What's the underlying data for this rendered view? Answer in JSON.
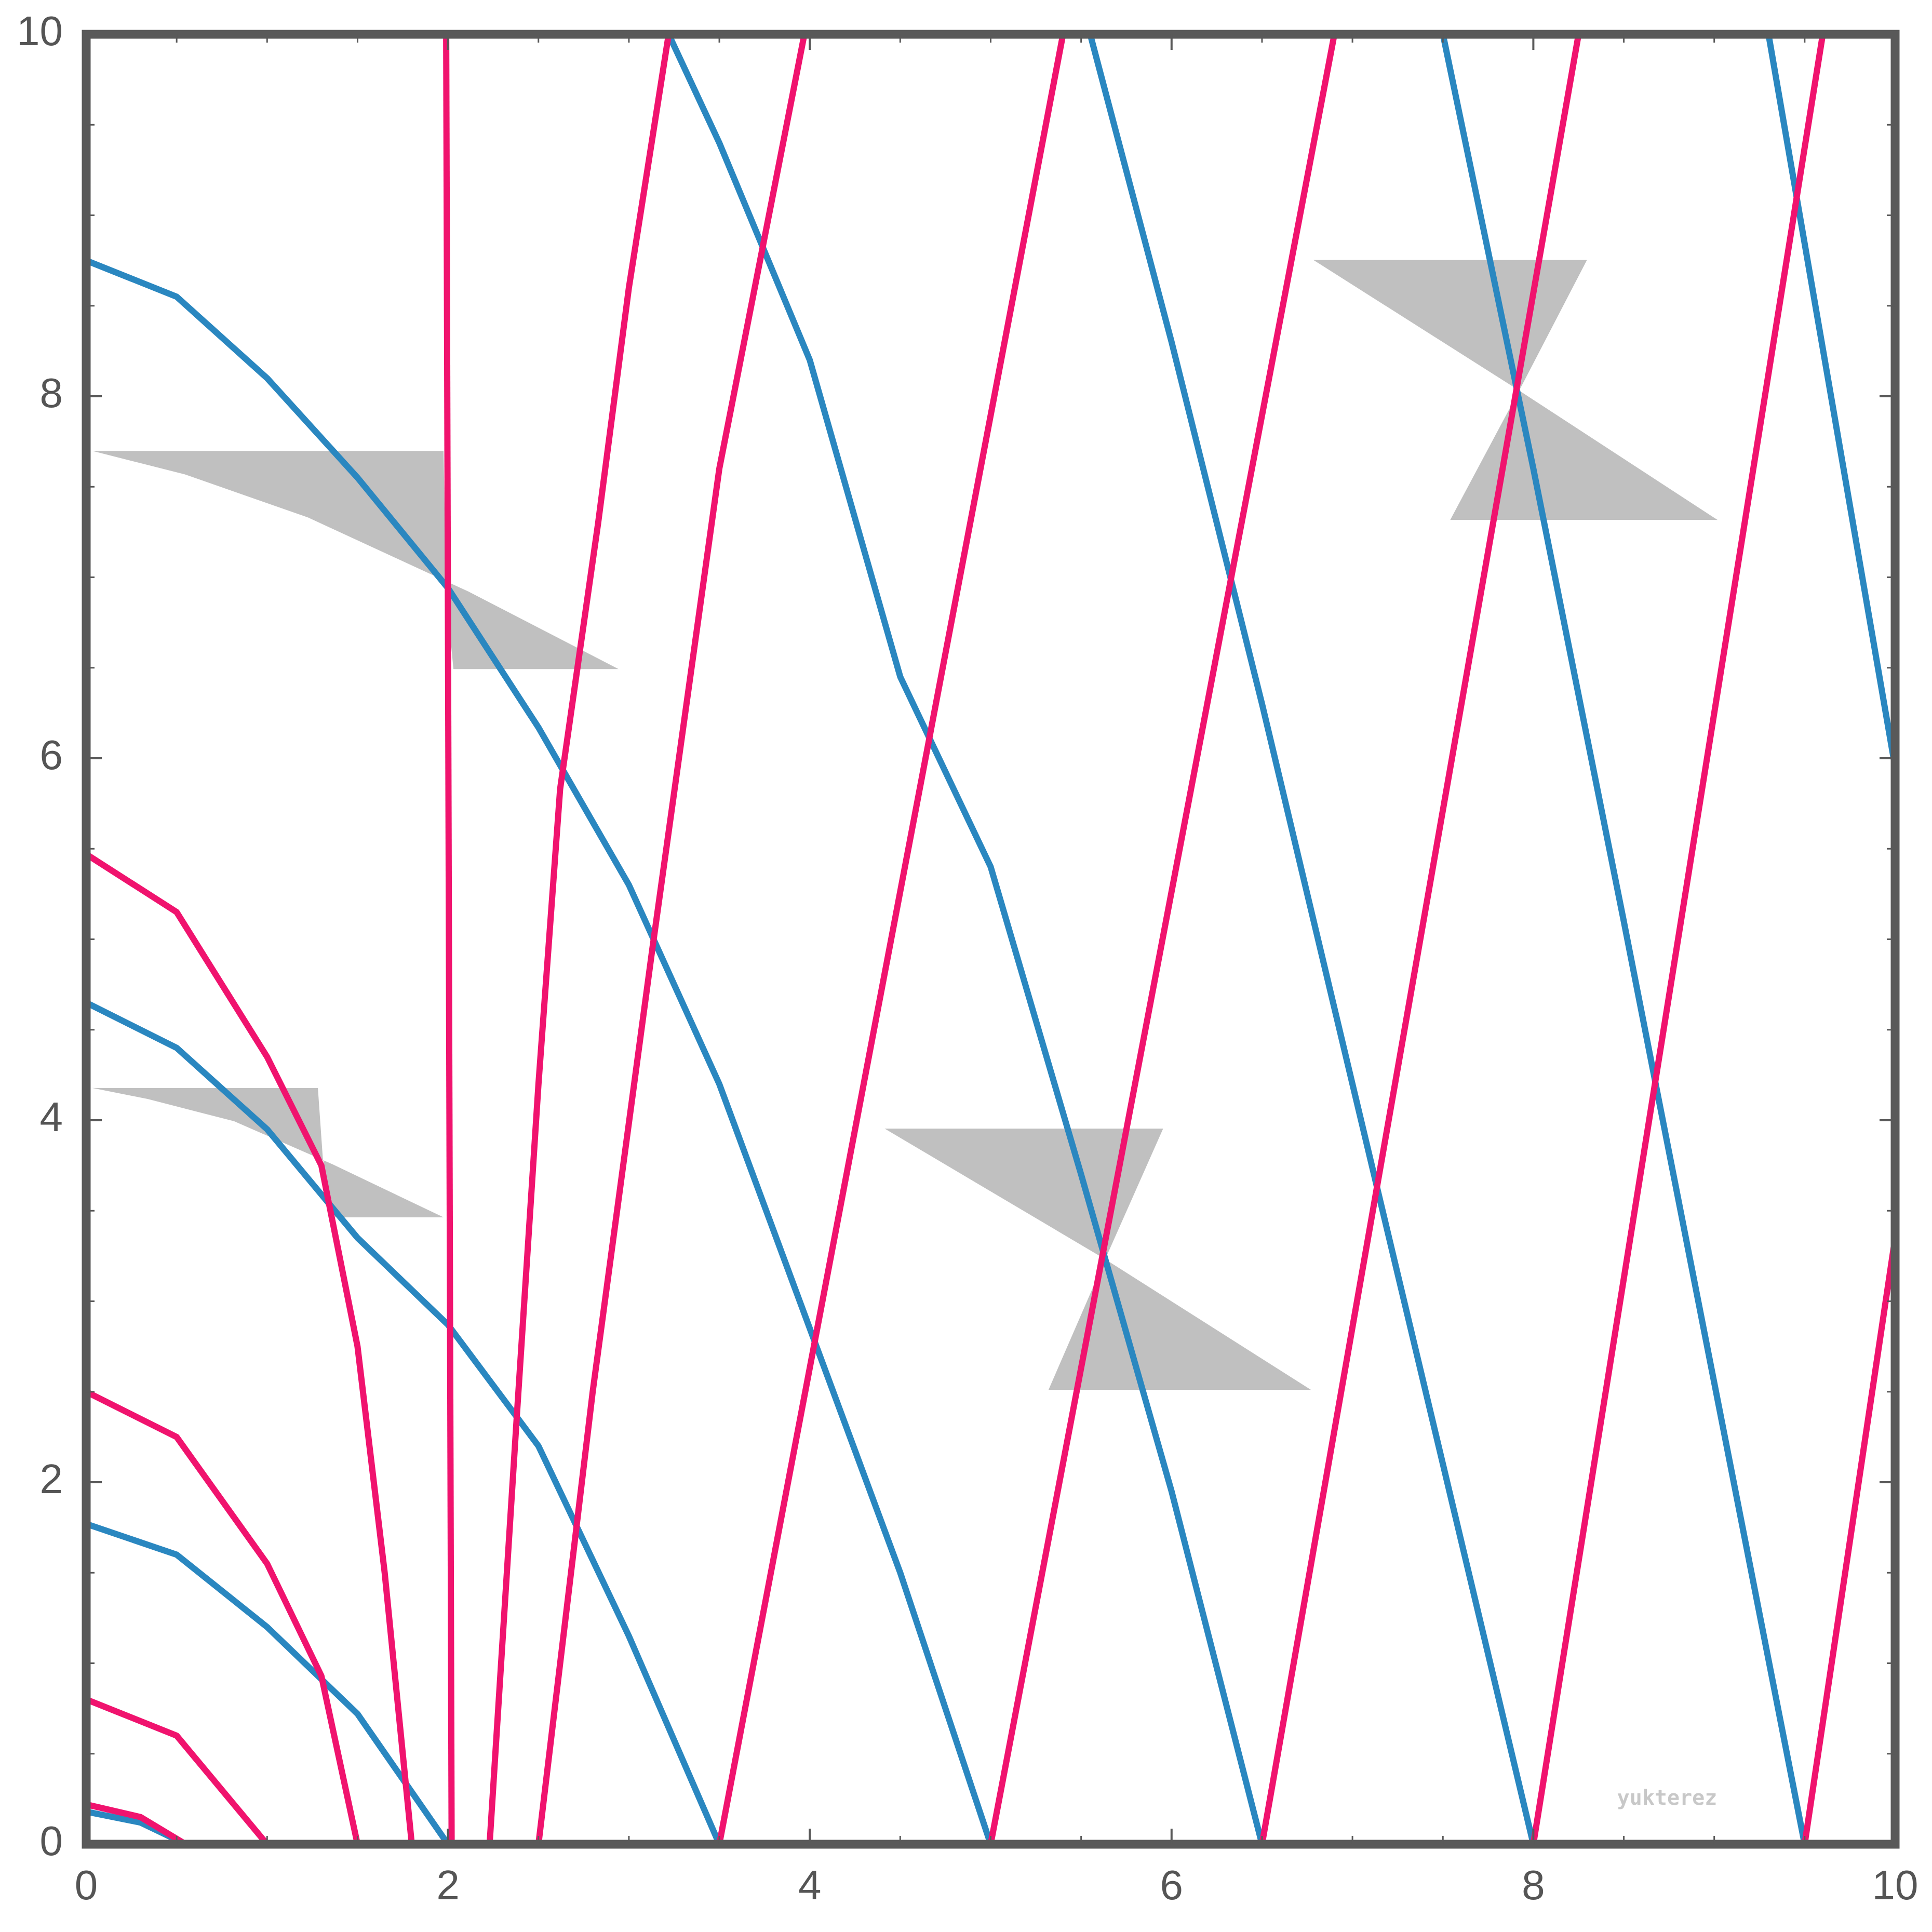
{
  "chart_data": {
    "type": "line",
    "xlim": [
      0,
      10
    ],
    "ylim": [
      0,
      10
    ],
    "xticks": [
      0,
      2,
      4,
      6,
      8,
      10
    ],
    "yticks": [
      0,
      2,
      4,
      6,
      8,
      10
    ],
    "watermark": "yukterez",
    "series": [
      {
        "color": "#2a87c0",
        "x": [
          0,
          0.3,
          0.55
        ],
        "values": [
          0.18,
          0.12,
          0
        ]
      },
      {
        "color": "#2a87c0",
        "x": [
          0,
          0.5,
          1,
          1.5,
          2
        ],
        "values": [
          1.77,
          1.6,
          1.2,
          0.72,
          0
        ]
      },
      {
        "color": "#2a87c0",
        "x": [
          0,
          0.5,
          1,
          1.5,
          2,
          2.5,
          3,
          3.5
        ],
        "values": [
          4.65,
          4.4,
          3.95,
          3.35,
          2.87,
          2.2,
          1.15,
          0
        ]
      },
      {
        "color": "#2a87c0",
        "x": [
          0,
          0.5,
          1,
          1.5,
          2,
          2.5,
          3,
          3.5,
          4,
          4.5,
          5
        ],
        "values": [
          8.75,
          8.55,
          8.1,
          7.55,
          6.94,
          6.17,
          5.3,
          4.2,
          2.85,
          1.5,
          0
        ]
      },
      {
        "color": "#2a87c0",
        "x": [
          3.22,
          3.5,
          4,
          4.5,
          5,
          5.5,
          6,
          6.5
        ],
        "values": [
          10,
          9.4,
          8.2,
          6.45,
          5.4,
          3.7,
          1.95,
          0
        ]
      },
      {
        "color": "#2a87c0",
        "x": [
          5.55,
          6,
          6.5,
          7,
          7.5,
          8
        ],
        "values": [
          10,
          8.3,
          6.3,
          4.2,
          2.1,
          0
        ]
      },
      {
        "color": "#2a87c0",
        "x": [
          7.5,
          8,
          8.5,
          9,
          9.5
        ],
        "values": [
          10,
          7.6,
          5.1,
          2.55,
          0
        ]
      },
      {
        "color": "#2a87c0",
        "x": [
          9.3,
          10
        ],
        "values": [
          10,
          5.95
        ]
      },
      {
        "color": "#f0136e",
        "x": [
          0,
          0.3,
          0.55
        ],
        "values": [
          0.22,
          0.15,
          0
        ]
      },
      {
        "color": "#f0136e",
        "x": [
          0,
          0.5,
          1
        ],
        "values": [
          0.8,
          0.6,
          0
        ]
      },
      {
        "color": "#f0136e",
        "x": [
          0,
          0.5,
          1,
          1.3,
          1.5
        ],
        "values": [
          2.5,
          2.25,
          1.55,
          0.93,
          0
        ]
      },
      {
        "color": "#f0136e",
        "x": [
          0,
          0.5,
          1,
          1.3,
          1.5,
          1.65,
          1.8
        ],
        "values": [
          5.47,
          5.15,
          4.35,
          3.75,
          2.75,
          1.5,
          0
        ]
      },
      {
        "color": "#f0136e",
        "x": [
          1.99,
          2.02
        ],
        "values": [
          10,
          0
        ]
      },
      {
        "color": "#f0136e",
        "x": [
          2.23,
          2.38,
          2.5,
          2.62,
          2.83,
          3.0,
          3.22
        ],
        "values": [
          0,
          2.36,
          4.2,
          5.83,
          7.3,
          8.6,
          10
        ]
      },
      {
        "color": "#f0136e",
        "x": [
          2.5,
          2.8,
          3.13,
          3.5,
          3.97
        ],
        "values": [
          0,
          2.5,
          4.95,
          7.6,
          10
        ]
      },
      {
        "color": "#f0136e",
        "x": [
          3.5,
          5.4
        ],
        "values": [
          0,
          10
        ]
      },
      {
        "color": "#f0136e",
        "x": [
          5,
          6.9
        ],
        "values": [
          0,
          10
        ]
      },
      {
        "color": "#f0136e",
        "x": [
          6.5,
          8.25
        ],
        "values": [
          0,
          10
        ]
      },
      {
        "color": "#f0136e",
        "x": [
          8,
          9.6
        ],
        "values": [
          0,
          10
        ]
      },
      {
        "color": "#f0136e",
        "x": [
          9.5,
          10
        ],
        "values": [
          0,
          3.35
        ]
      }
    ]
  }
}
